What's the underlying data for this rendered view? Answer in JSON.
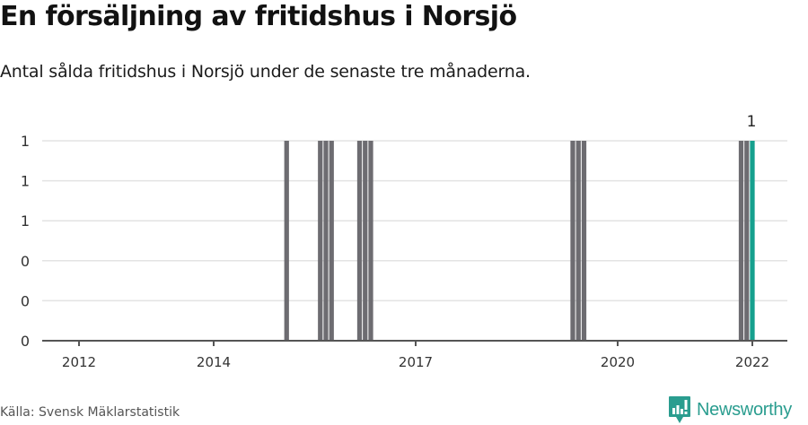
{
  "header": {
    "title": "En försäljning av fritidshus i Norsjö",
    "subtitle": "Antal sålda fritidshus i Norsjö under de senaste tre månaderna."
  },
  "footer": {
    "source": "Källa: Svensk Mäklarstatistik",
    "brand": "Newsworthy",
    "brand_icon": "bar-chart-speech-bubble-icon"
  },
  "colors": {
    "bar": "#6d6c71",
    "highlight": "#16a08e",
    "grid": "#e3e3e3",
    "axis": "#555555",
    "brand": "#2a9d8f"
  },
  "chart_data": {
    "type": "bar",
    "title": "En försäljning av fritidshus i Norsjö",
    "subtitle": "Antal sålda fritidshus i Norsjö under de senaste tre månaderna.",
    "xlabel": "",
    "ylabel": "",
    "ylim": [
      0,
      1
    ],
    "y_ticks": [
      0,
      0.2,
      0.4,
      0.6,
      0.8,
      1.0
    ],
    "y_tick_labels": [
      "0",
      "0",
      "0",
      "1",
      "1",
      "1"
    ],
    "x_ticks": [
      "2012",
      "2014",
      "2017",
      "2020",
      "2022"
    ],
    "grid": true,
    "legend": null,
    "annotations": [
      {
        "label": "1",
        "at": "2021-12",
        "note": "value label above latest bar"
      }
    ],
    "x_range": [
      "2012-01",
      "2022-06"
    ],
    "bars": [
      {
        "month": "2015-02",
        "value": 1,
        "highlight": false
      },
      {
        "month": "2015-08",
        "value": 1,
        "highlight": false
      },
      {
        "month": "2015-09",
        "value": 1,
        "highlight": false
      },
      {
        "month": "2015-10",
        "value": 1,
        "highlight": false
      },
      {
        "month": "2016-03",
        "value": 1,
        "highlight": false
      },
      {
        "month": "2016-04",
        "value": 1,
        "highlight": false
      },
      {
        "month": "2016-05",
        "value": 1,
        "highlight": false
      },
      {
        "month": "2019-05",
        "value": 1,
        "highlight": false
      },
      {
        "month": "2019-06",
        "value": 1,
        "highlight": false
      },
      {
        "month": "2019-07",
        "value": 1,
        "highlight": false
      },
      {
        "month": "2021-11",
        "value": 1,
        "highlight": false
      },
      {
        "month": "2021-12",
        "value": 1,
        "highlight": false
      },
      {
        "month": "2022-01",
        "value": 1,
        "highlight": true
      }
    ],
    "note": "All other months have value 0"
  }
}
